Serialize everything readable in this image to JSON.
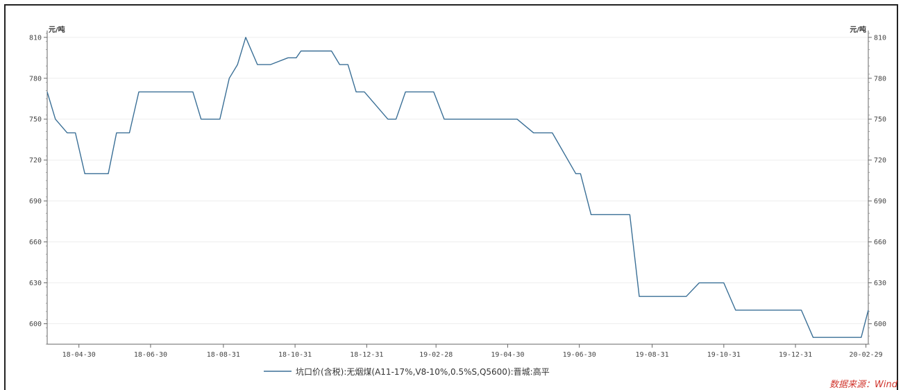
{
  "chart_data": {
    "type": "line",
    "y_unit_left": "元/吨",
    "y_unit_right": "元/吨",
    "ylim": [
      585,
      815
    ],
    "yticks": [
      600,
      630,
      660,
      690,
      720,
      750,
      780,
      810
    ],
    "x_ticks": [
      "18-04-30",
      "18-06-30",
      "18-08-31",
      "18-10-31",
      "18-12-31",
      "19-02-28",
      "19-04-30",
      "19-06-30",
      "19-08-31",
      "19-10-31",
      "19-12-31",
      "20-02-29"
    ],
    "x_range": [
      "2018-04-03",
      "2020-03-02"
    ],
    "series": [
      {
        "name": "坑口价(含税):无烟煤(A11-17%,V8-10%,0.5%S,Q5600):晋城:高平",
        "color": "#3a6f96",
        "points": [
          [
            "2018-04-03",
            770
          ],
          [
            "2018-04-10",
            750
          ],
          [
            "2018-04-20",
            740
          ],
          [
            "2018-04-27",
            740
          ],
          [
            "2018-05-05",
            710
          ],
          [
            "2018-05-25",
            710
          ],
          [
            "2018-06-01",
            740
          ],
          [
            "2018-06-12",
            740
          ],
          [
            "2018-06-20",
            770
          ],
          [
            "2018-08-05",
            770
          ],
          [
            "2018-08-12",
            750
          ],
          [
            "2018-08-28",
            750
          ],
          [
            "2018-09-05",
            780
          ],
          [
            "2018-09-12",
            790
          ],
          [
            "2018-09-19",
            810
          ],
          [
            "2018-09-29",
            790
          ],
          [
            "2018-10-10",
            790
          ],
          [
            "2018-10-25",
            795
          ],
          [
            "2018-11-01",
            795
          ],
          [
            "2018-11-05",
            800
          ],
          [
            "2018-12-01",
            800
          ],
          [
            "2018-12-08",
            790
          ],
          [
            "2018-12-15",
            790
          ],
          [
            "2018-12-22",
            770
          ],
          [
            "2018-12-29",
            770
          ],
          [
            "2019-01-18",
            750
          ],
          [
            "2019-01-25",
            750
          ],
          [
            "2019-02-02",
            770
          ],
          [
            "2019-02-26",
            770
          ],
          [
            "2019-03-07",
            750
          ],
          [
            "2019-05-08",
            750
          ],
          [
            "2019-05-22",
            740
          ],
          [
            "2019-06-07",
            740
          ],
          [
            "2019-06-27",
            710
          ],
          [
            "2019-07-01",
            710
          ],
          [
            "2019-07-10",
            680
          ],
          [
            "2019-08-12",
            680
          ],
          [
            "2019-08-20",
            620
          ],
          [
            "2019-09-29",
            620
          ],
          [
            "2019-10-10",
            630
          ],
          [
            "2019-10-31",
            630
          ],
          [
            "2019-11-10",
            610
          ],
          [
            "2020-01-05",
            610
          ],
          [
            "2020-01-15",
            590
          ],
          [
            "2020-02-25",
            590
          ],
          [
            "2020-03-02",
            610
          ]
        ]
      }
    ],
    "legend_position": "bottom",
    "grid": true
  },
  "source_label": "数据来源：Wind"
}
